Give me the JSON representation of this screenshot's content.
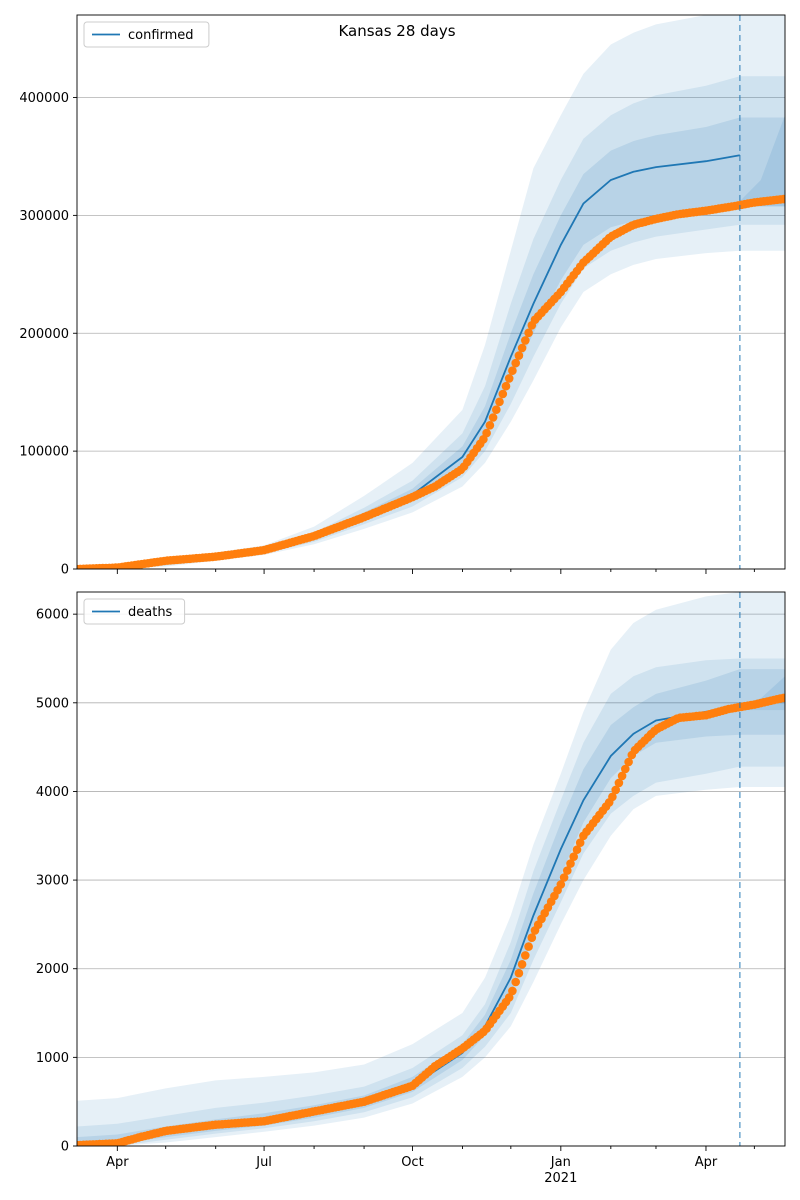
{
  "chart_data": [
    {
      "type": "line",
      "title": "Kansas 28 days",
      "xlabel": "",
      "ylabel": "",
      "x_range": [
        "2020-03-07",
        "2021-05-20"
      ],
      "ylim": [
        0,
        470000
      ],
      "y_ticks": [
        0,
        100000,
        200000,
        300000,
        400000
      ],
      "y_tick_labels": [
        "0",
        "100000",
        "200000",
        "300000",
        "400000"
      ],
      "grid": "horizontal",
      "legend_position": "top-left",
      "forecast_line_date": "2021-04-22",
      "model_line": {
        "name": "confirmed",
        "color": "#1f77b4",
        "x": [
          "2020-03-07",
          "2020-04-01",
          "2020-05-01",
          "2020-06-01",
          "2020-07-01",
          "2020-08-01",
          "2020-09-01",
          "2020-10-01",
          "2020-11-01",
          "2020-11-15",
          "2020-12-01",
          "2020-12-15",
          "2021-01-01",
          "2021-01-15",
          "2021-02-01",
          "2021-02-15",
          "2021-03-01",
          "2021-04-01",
          "2021-04-22"
        ],
        "values": [
          500,
          1000,
          5000,
          10000,
          15000,
          27000,
          45000,
          63000,
          95000,
          125000,
          180000,
          225000,
          275000,
          310000,
          330000,
          337000,
          341000,
          346000,
          351000
        ]
      },
      "bands": {
        "color": "#1f77b4",
        "x": [
          "2020-03-07",
          "2020-04-01",
          "2020-05-01",
          "2020-06-01",
          "2020-07-01",
          "2020-08-01",
          "2020-09-01",
          "2020-10-01",
          "2020-11-01",
          "2020-11-15",
          "2020-12-01",
          "2020-12-15",
          "2021-01-01",
          "2021-01-15",
          "2021-02-01",
          "2021-02-15",
          "2021-03-01",
          "2021-04-01",
          "2021-04-22",
          "2021-05-20"
        ],
        "outer_upper": [
          1000,
          3000,
          9000,
          14000,
          20000,
          36000,
          62000,
          90000,
          135000,
          190000,
          270000,
          340000,
          385000,
          420000,
          445000,
          455000,
          462000,
          470000,
          472000,
          472000
        ],
        "inner_upper": [
          800,
          2000,
          7000,
          12000,
          18000,
          31000,
          52000,
          75000,
          115000,
          155000,
          225000,
          280000,
          330000,
          365000,
          385000,
          395000,
          402000,
          410000,
          418000,
          418000
        ],
        "core_upper": [
          600,
          1500,
          6000,
          11000,
          16500,
          29000,
          48000,
          68000,
          104000,
          138000,
          200000,
          250000,
          300000,
          335000,
          355000,
          363000,
          368000,
          375000,
          383000,
          383000
        ],
        "core_lower": [
          400,
          800,
          4000,
          9000,
          14000,
          25000,
          42000,
          58000,
          85000,
          110000,
          160000,
          200000,
          245000,
          275000,
          290000,
          295000,
          300000,
          305000,
          308000,
          308000
        ],
        "inner_lower": [
          300,
          600,
          3000,
          8000,
          13000,
          23000,
          38000,
          53000,
          78000,
          100000,
          140000,
          180000,
          225000,
          255000,
          270000,
          277000,
          282000,
          288000,
          292000,
          292000
        ],
        "outer_lower": [
          200,
          400,
          2000,
          7000,
          12000,
          21000,
          34000,
          48000,
          70000,
          90000,
          125000,
          160000,
          205000,
          235000,
          250000,
          258000,
          263000,
          268000,
          270000,
          270000
        ],
        "future_upper": {
          "x": [
            "2021-04-22",
            "2021-05-05",
            "2021-05-20"
          ],
          "values": [
            312000,
            330000,
            385000
          ]
        }
      },
      "observed": {
        "color": "#ff7f0e",
        "x": [
          "2020-03-07",
          "2020-04-01",
          "2020-05-01",
          "2020-06-01",
          "2020-07-01",
          "2020-08-01",
          "2020-09-01",
          "2020-10-01",
          "2020-10-15",
          "2020-11-01",
          "2020-11-15",
          "2020-12-01",
          "2020-12-15",
          "2021-01-01",
          "2021-01-15",
          "2021-02-01",
          "2021-02-15",
          "2021-03-01",
          "2021-03-15",
          "2021-04-01",
          "2021-04-15",
          "2021-05-01",
          "2021-05-20"
        ],
        "values": [
          0,
          1200,
          7000,
          10500,
          16000,
          28000,
          44000,
          61000,
          70000,
          85000,
          112000,
          165000,
          210000,
          235000,
          260000,
          282000,
          292000,
          297000,
          301000,
          304000,
          307000,
          311000,
          314000
        ]
      }
    },
    {
      "type": "line",
      "title": "",
      "xlabel": "",
      "ylabel": "",
      "x_range": [
        "2020-03-07",
        "2021-05-20"
      ],
      "ylim": [
        0,
        6250
      ],
      "y_ticks": [
        0,
        1000,
        2000,
        3000,
        4000,
        5000,
        6000
      ],
      "y_tick_labels": [
        "0",
        "1000",
        "2000",
        "3000",
        "4000",
        "5000",
        "6000"
      ],
      "x_ticks": [
        "2020-04-01",
        "2020-07-01",
        "2020-10-01",
        "2021-01-01",
        "2021-04-01"
      ],
      "x_tick_labels": [
        "Apr",
        "Jul",
        "Oct",
        "Jan",
        "Apr"
      ],
      "x_year_label": "2021",
      "grid": "horizontal",
      "legend_position": "top-left",
      "forecast_line_date": "2021-04-22",
      "model_line": {
        "name": "deaths",
        "color": "#1f77b4",
        "x": [
          "2020-03-07",
          "2020-04-01",
          "2020-05-01",
          "2020-06-01",
          "2020-07-01",
          "2020-08-01",
          "2020-09-01",
          "2020-10-01",
          "2020-11-01",
          "2020-11-15",
          "2020-12-01",
          "2020-12-15",
          "2021-01-01",
          "2021-01-15",
          "2021-02-01",
          "2021-02-15",
          "2021-03-01",
          "2021-04-01",
          "2021-04-22"
        ],
        "values": [
          20,
          60,
          150,
          220,
          290,
          380,
          490,
          680,
          1050,
          1350,
          1900,
          2600,
          3350,
          3900,
          4400,
          4650,
          4800,
          4900,
          4960
        ]
      },
      "bands": {
        "color": "#1f77b4",
        "x": [
          "2020-03-07",
          "2020-04-01",
          "2020-05-01",
          "2020-06-01",
          "2020-07-01",
          "2020-08-01",
          "2020-09-01",
          "2020-10-01",
          "2020-11-01",
          "2020-11-15",
          "2020-12-01",
          "2020-12-15",
          "2021-01-01",
          "2021-01-15",
          "2021-02-01",
          "2021-02-15",
          "2021-03-01",
          "2021-04-01",
          "2021-04-22",
          "2021-05-20"
        ],
        "outer_upper": [
          510,
          540,
          650,
          740,
          780,
          830,
          920,
          1150,
          1500,
          1900,
          2600,
          3400,
          4200,
          4900,
          5600,
          5900,
          6050,
          6200,
          6250,
          6250
        ],
        "inner_upper": [
          220,
          250,
          340,
          430,
          490,
          570,
          670,
          880,
          1250,
          1600,
          2300,
          3100,
          3900,
          4550,
          5100,
          5300,
          5400,
          5480,
          5500,
          5500
        ],
        "core_upper": [
          100,
          130,
          220,
          300,
          370,
          460,
          570,
          780,
          1150,
          1480,
          2100,
          2850,
          3650,
          4250,
          4750,
          4950,
          5100,
          5250,
          5380,
          5380
        ],
        "core_lower": [
          0,
          20,
          100,
          170,
          230,
          320,
          430,
          610,
          970,
          1250,
          1700,
          2350,
          3050,
          3650,
          4150,
          4400,
          4550,
          4620,
          4640,
          4640
        ],
        "inner_lower": [
          0,
          0,
          70,
          140,
          200,
          280,
          380,
          550,
          880,
          1120,
          1500,
          2100,
          2750,
          3300,
          3750,
          3950,
          4100,
          4200,
          4280,
          4280
        ],
        "outer_lower": [
          0,
          0,
          40,
          100,
          160,
          230,
          320,
          480,
          780,
          1000,
          1350,
          1850,
          2500,
          3000,
          3500,
          3800,
          3950,
          4020,
          4050,
          4050
        ],
        "future_upper": {
          "x": [
            "2021-04-22",
            "2021-05-05",
            "2021-05-20"
          ],
          "values": [
            4980,
            5050,
            5300
          ]
        }
      },
      "observed": {
        "color": "#ff7f0e",
        "x": [
          "2020-03-07",
          "2020-04-01",
          "2020-04-15",
          "2020-05-01",
          "2020-06-01",
          "2020-07-01",
          "2020-08-01",
          "2020-09-01",
          "2020-10-01",
          "2020-10-15",
          "2020-11-01",
          "2020-11-15",
          "2020-12-01",
          "2020-12-15",
          "2021-01-01",
          "2021-01-15",
          "2021-02-01",
          "2021-02-15",
          "2021-03-01",
          "2021-03-15",
          "2021-04-01",
          "2021-04-15",
          "2021-05-01",
          "2021-05-20"
        ],
        "values": [
          10,
          30,
          100,
          170,
          240,
          280,
          390,
          500,
          680,
          900,
          1100,
          1300,
          1700,
          2400,
          2950,
          3500,
          3900,
          4450,
          4700,
          4830,
          4860,
          4930,
          4980,
          5060
        ]
      }
    }
  ]
}
